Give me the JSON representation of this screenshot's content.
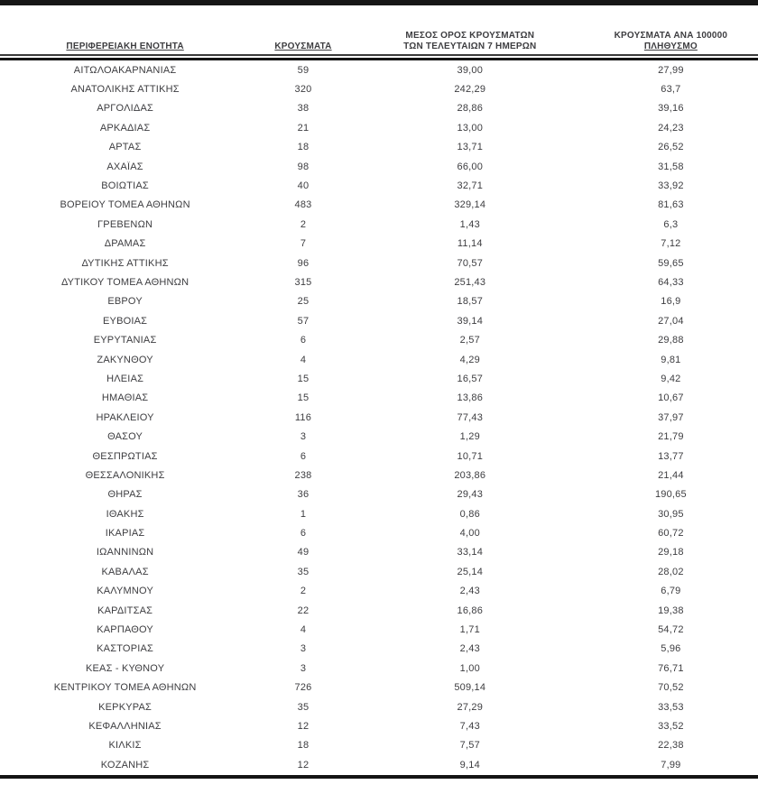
{
  "table": {
    "headers": {
      "region": "ΠΕΡΙΦΕΡΕΙΑΚΗ ΕΝΟΤΗΤΑ",
      "cases": "ΚΡΟΥΣΜΑΤΑ",
      "avg7_line1": "ΜΕΣΟΣ ΟΡΟΣ ΚΡΟΥΣΜΑΤΩΝ",
      "avg7_line2": "ΤΩΝ ΤΕΛΕΥΤΑΙΩΝ 7 ΗΜΕΡΩΝ",
      "per100k_line1": "ΚΡΟΥΣΜΑΤΑ ΑΝΑ 100000",
      "per100k_line2": "ΠΛΗΘΥΣΜΟ"
    },
    "rows": [
      [
        "ΑΙΤΩΛΟΑΚΑΡΝΑΝΙΑΣ",
        "59",
        "39,00",
        "27,99"
      ],
      [
        "ΑΝΑΤΟΛΙΚΗΣ ΑΤΤΙΚΗΣ",
        "320",
        "242,29",
        "63,7"
      ],
      [
        "ΑΡΓΟΛΙΔΑΣ",
        "38",
        "28,86",
        "39,16"
      ],
      [
        "ΑΡΚΑΔΙΑΣ",
        "21",
        "13,00",
        "24,23"
      ],
      [
        "ΑΡΤΑΣ",
        "18",
        "13,71",
        "26,52"
      ],
      [
        "ΑΧΑΪΑΣ",
        "98",
        "66,00",
        "31,58"
      ],
      [
        "ΒΟΙΩΤΙΑΣ",
        "40",
        "32,71",
        "33,92"
      ],
      [
        "ΒΟΡΕΙΟΥ ΤΟΜΕΑ ΑΘΗΝΩΝ",
        "483",
        "329,14",
        "81,63"
      ],
      [
        "ΓΡΕΒΕΝΩΝ",
        "2",
        "1,43",
        "6,3"
      ],
      [
        "ΔΡΑΜΑΣ",
        "7",
        "11,14",
        "7,12"
      ],
      [
        "ΔΥΤΙΚΗΣ ΑΤΤΙΚΗΣ",
        "96",
        "70,57",
        "59,65"
      ],
      [
        "ΔΥΤΙΚΟΥ ΤΟΜΕΑ ΑΘΗΝΩΝ",
        "315",
        "251,43",
        "64,33"
      ],
      [
        "ΕΒΡΟΥ",
        "25",
        "18,57",
        "16,9"
      ],
      [
        "ΕΥΒΟΙΑΣ",
        "57",
        "39,14",
        "27,04"
      ],
      [
        "ΕΥΡΥΤΑΝΙΑΣ",
        "6",
        "2,57",
        "29,88"
      ],
      [
        "ΖΑΚΥΝΘΟΥ",
        "4",
        "4,29",
        "9,81"
      ],
      [
        "ΗΛΕΙΑΣ",
        "15",
        "16,57",
        "9,42"
      ],
      [
        "ΗΜΑΘΙΑΣ",
        "15",
        "13,86",
        "10,67"
      ],
      [
        "ΗΡΑΚΛΕΙΟΥ",
        "116",
        "77,43",
        "37,97"
      ],
      [
        "ΘΑΣΟΥ",
        "3",
        "1,29",
        "21,79"
      ],
      [
        "ΘΕΣΠΡΩΤΙΑΣ",
        "6",
        "10,71",
        "13,77"
      ],
      [
        "ΘΕΣΣΑΛΟΝΙΚΗΣ",
        "238",
        "203,86",
        "21,44"
      ],
      [
        "ΘΗΡΑΣ",
        "36",
        "29,43",
        "190,65"
      ],
      [
        "ΙΘΑΚΗΣ",
        "1",
        "0,86",
        "30,95"
      ],
      [
        "ΙΚΑΡΙΑΣ",
        "6",
        "4,00",
        "60,72"
      ],
      [
        "ΙΩΑΝΝΙΝΩΝ",
        "49",
        "33,14",
        "29,18"
      ],
      [
        "ΚΑΒΑΛΑΣ",
        "35",
        "25,14",
        "28,02"
      ],
      [
        "ΚΑΛΥΜΝΟΥ",
        "2",
        "2,43",
        "6,79"
      ],
      [
        "ΚΑΡΔΙΤΣΑΣ",
        "22",
        "16,86",
        "19,38"
      ],
      [
        "ΚΑΡΠΑΘΟΥ",
        "4",
        "1,71",
        "54,72"
      ],
      [
        "ΚΑΣΤΟΡΙΑΣ",
        "3",
        "2,43",
        "5,96"
      ],
      [
        "ΚΕΑΣ - ΚΥΘΝΟΥ",
        "3",
        "1,00",
        "76,71"
      ],
      [
        "ΚΕΝΤΡΙΚΟΥ ΤΟΜΕΑ ΑΘΗΝΩΝ",
        "726",
        "509,14",
        "70,52"
      ],
      [
        "ΚΕΡΚΥΡΑΣ",
        "35",
        "27,29",
        "33,53"
      ],
      [
        "ΚΕΦΑΛΛΗΝΙΑΣ",
        "12",
        "7,43",
        "33,52"
      ],
      [
        "ΚΙΛΚΙΣ",
        "18",
        "7,57",
        "22,38"
      ],
      [
        "ΚΟΖΑΝΗΣ",
        "12",
        "9,14",
        "7,99"
      ]
    ]
  },
  "colors": {
    "text": "#3d3d40",
    "rule": "#141414"
  }
}
